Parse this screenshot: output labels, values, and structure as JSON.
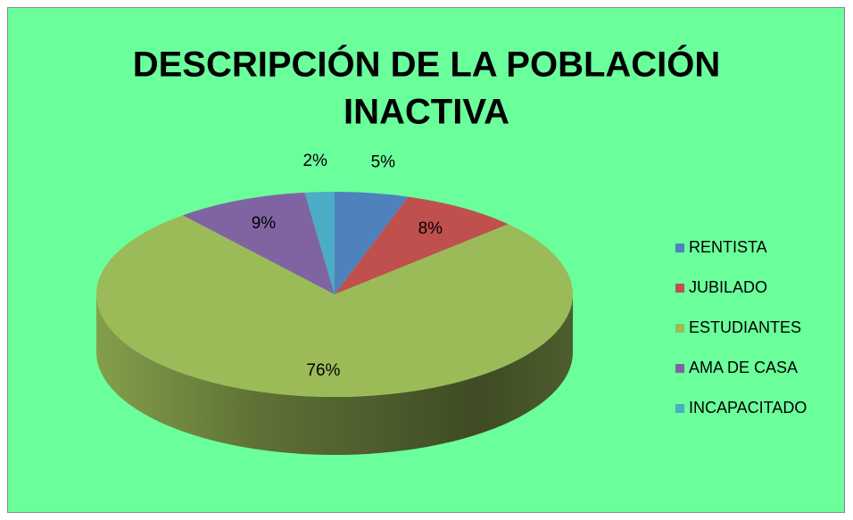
{
  "chart_data": {
    "type": "pie3d",
    "title": [
      "DESCRIPCIÓN DE LA POBLACIÓN",
      "INACTIVA"
    ],
    "categories": [
      "RENTISTA",
      "JUBILADO",
      "ESTUDIANTES",
      "AMA DE CASA",
      "INCAPACITADO"
    ],
    "values": [
      5,
      8,
      76,
      9,
      2
    ],
    "value_labels": [
      "5%",
      "8%",
      "76%",
      "9%",
      "2%"
    ],
    "colors": [
      "#4f81bd",
      "#c0504d",
      "#9bbb59",
      "#8064a2",
      "#4bacc6"
    ],
    "background": "#6bff9c",
    "legend": "right"
  }
}
